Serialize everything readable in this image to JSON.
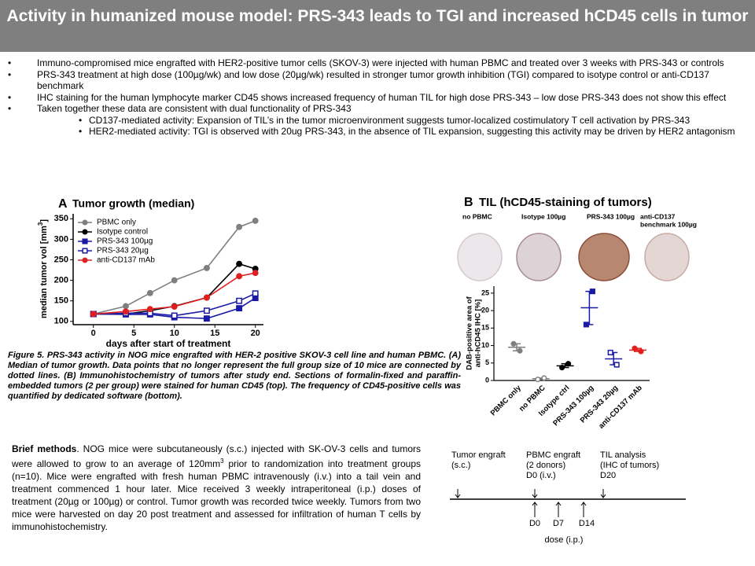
{
  "header": {
    "title": "Activity in humanized mouse model: PRS-343 leads to TGI and increased hCD45 cells in tumor"
  },
  "bullets": [
    {
      "text": "Immuno-compromised mice engrafted with HER2-positive tumor cells (SKOV-3) were injected with human PBMC and treated over 3 weeks with PRS-343 or controls"
    },
    {
      "text": "PRS-343 treatment at high dose (100µg/wk) and low dose (20µg/wk) resulted in stronger tumor growth inhibition (TGI) compared to isotype control or anti-CD137 benchmark"
    },
    {
      "text": "IHC staining for the human lymphocyte marker CD45 shows increased frequency of human TIL for high dose PRS-343 – low dose PRS-343 does not show this effect"
    },
    {
      "text": "Taken together these data are consistent with dual functionality of PRS-343",
      "sub": [
        "CD137-mediated activity: Expansion of TIL’s in the tumor microenvironment suggests tumor-localized costimulatory T cell activation by PRS-343",
        "HER2-mediated activity: TGI is observed with 20ug PRS-343, in the absence of TIL expansion, suggesting this activity may be driven by HER2 antagonism"
      ]
    }
  ],
  "chart_data": [
    {
      "type": "line",
      "panel": "A",
      "title": "Tumor growth (median)",
      "ylabel": [
        "median tumor vol [mm",
        "3",
        "]"
      ],
      "xlabel": "days after start of treatment",
      "x": [
        0,
        4,
        7,
        10,
        14,
        18,
        20
      ],
      "xlim": [
        -2.5,
        21
      ],
      "xticks": [
        0,
        5,
        10,
        15,
        20
      ],
      "ylim": [
        92,
        362
      ],
      "yticks": [
        100,
        150,
        200,
        250,
        300,
        350
      ],
      "series": [
        {
          "name": "PBMC only",
          "color": "#7f7f7f",
          "marker": "circle",
          "values": [
            118,
            137,
            169,
            200,
            230,
            330,
            345
          ]
        },
        {
          "name": "Isotype control",
          "color": "#000000",
          "marker": "circle",
          "values": [
            118,
            118,
            126,
            137,
            158,
            240,
            228
          ]
        },
        {
          "name": "PRS-343 100µg",
          "color": "#1a1aa6",
          "marker": "square",
          "values": [
            118,
            117,
            117,
            110,
            107,
            132,
            157
          ]
        },
        {
          "name": "PRS-343 20µg",
          "color": "#1a1aa6",
          "marker": "square-open",
          "values": [
            118,
            120,
            120,
            114,
            126,
            150,
            168
          ]
        },
        {
          "name": "anti-CD137 mAb",
          "color": "#e02020",
          "marker": "circle",
          "values": [
            118,
            124,
            130,
            136,
            158,
            210,
            218
          ]
        }
      ]
    },
    {
      "type": "dot",
      "panel": "B",
      "title": "TIL (hCD45-staining of tumors)",
      "images": [
        [
          "no PBMC"
        ],
        [
          "Isotype 100µg"
        ],
        [
          "PRS-343 100µg"
        ],
        [
          "anti-CD137",
          "benchmark 100µg"
        ]
      ],
      "ylabel": [
        "DAB-positive area of",
        "anti-hCD45 IHC [%]"
      ],
      "categories": [
        "PBMC only",
        "no PBMC",
        "Isotype ctrl",
        "PRS-343 100µg",
        "PRS-343 20µg",
        "anti-CD137 mAb"
      ],
      "colors": [
        "#7f7f7f",
        "#7f7f7f",
        "#000000",
        "#1a1aa6",
        "#1a1aa6",
        "#e02020"
      ],
      "markers": [
        "circle",
        "circle-open",
        "circle",
        "square",
        "square-open",
        "circle"
      ],
      "points": [
        [
          10.5,
          8.5
        ],
        [
          0.3,
          0.7
        ],
        [
          3.7,
          4.8
        ],
        [
          16,
          25.5
        ],
        [
          8,
          4.5
        ],
        [
          9.2,
          8.3
        ]
      ],
      "means": [
        9.5,
        0.5,
        4.2,
        20.8,
        6.2,
        8.7
      ],
      "ylim": [
        0,
        27
      ],
      "yticks": [
        0,
        5,
        10,
        15,
        20,
        25
      ]
    }
  ],
  "caption": "Figure 5. PRS-343 activity in NOG mice engrafted with HER-2 positive SKOV-3 cell line and human PBMC. (A) Median of tumor growth. Data points that no longer represent the full group size of 10 mice are connected by dotted lines. (B) Immunohistochemistry of tumors after study end. Sections of formalin-fixed and paraffin-embedded tumors (2 per group) were stained for human CD45 (top). The frequency of CD45-positive cells was quantified by dedicated software (bottom).",
  "methods": {
    "lead": "Brief methods",
    "parts": [
      ". NOG mice were subcutaneously (s.c.) injected with SK-OV-3 cells and tumors were allowed to grow to an average of 120mm",
      "3",
      " prior to randomization into treatment groups (n=10). Mice were engrafted with fresh human PBMC intravenously (i.v.) into a tail vein and treatment commenced 1 hour later. Mice received 3 weekly intraperitoneal (i.p.) doses of treatment (20µg or 100µg) or control. Tumor growth was recorded twice weekly. Tumors from two mice were harvested on day 20 post treatment and assessed for infiltration of human T cells by immunohistochemistry."
    ]
  },
  "timeline": {
    "events": [
      [
        "Tumor engraft",
        "(s.c.)"
      ],
      [
        "PBMC engraft",
        "(2 donors)",
        "D0  (i.v.)"
      ],
      [
        "TIL analysis",
        "(IHC of tumors)",
        "D20"
      ]
    ],
    "doses": [
      "D0",
      "D7",
      "D14"
    ],
    "dose_label": "dose (i.p.)"
  }
}
